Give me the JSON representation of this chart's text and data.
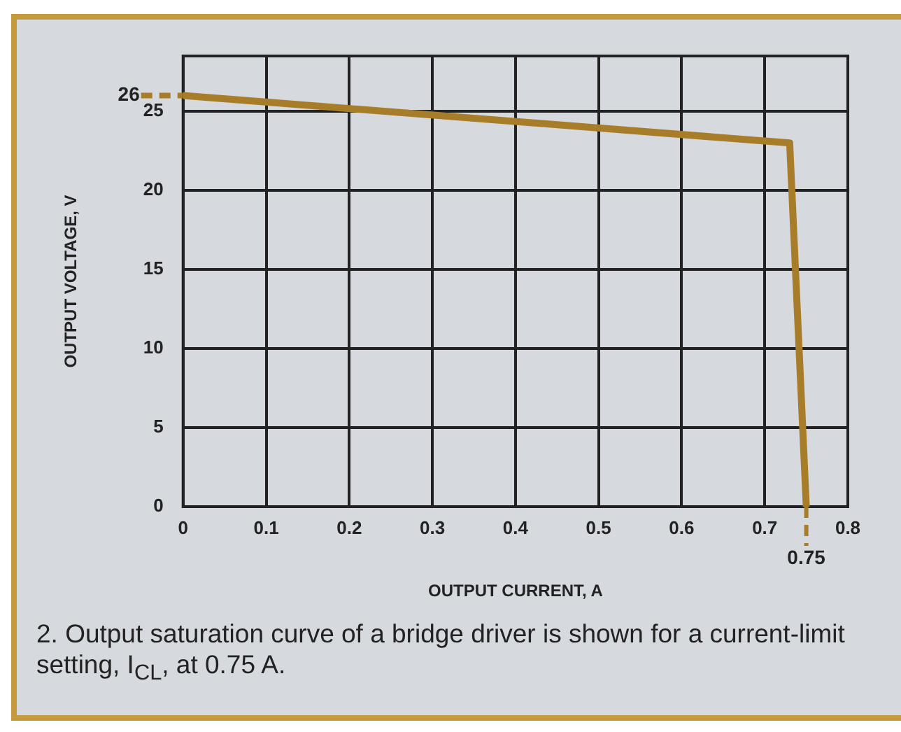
{
  "chart_data": {
    "type": "line",
    "xlabel": "OUTPUT CURRENT, A",
    "ylabel": "OUTPUT VOLTAGE, V",
    "x": [
      0,
      0.73,
      0.75
    ],
    "series": [
      {
        "color": "#a87d2a",
        "values": [
          26,
          23,
          0
        ]
      }
    ],
    "xlim": [
      0,
      0.8
    ],
    "xticks": [
      {
        "value": 0,
        "label": "0"
      },
      {
        "value": 0.1,
        "label": "0.1"
      },
      {
        "value": 0.2,
        "label": "0.2"
      },
      {
        "value": 0.3,
        "label": "0.3"
      },
      {
        "value": 0.4,
        "label": "0.4"
      },
      {
        "value": 0.5,
        "label": "0.5"
      },
      {
        "value": 0.6,
        "label": "0.6"
      },
      {
        "value": 0.7,
        "label": "0.7"
      },
      {
        "value": 0.8,
        "label": "0.8"
      }
    ],
    "ylim": [
      0,
      28.5
    ],
    "yticks": [
      0,
      5,
      10,
      15,
      20,
      25
    ],
    "grid": true,
    "marker": "none",
    "line_style": "solid",
    "legend": false,
    "ref_lines": [
      {
        "axis": "y",
        "value": 26,
        "label": "26",
        "color": "#a87d2a",
        "line_style": "dashed"
      },
      {
        "axis": "x",
        "value": 0.75,
        "label": "0.75",
        "color": "#a87d2a",
        "line_style": "dashed"
      }
    ],
    "annotations": [
      "2. Output saturation curve of a bridge driver is shown for a current-limit setting, I$_{CL}$, at 0.75 A."
    ]
  }
}
